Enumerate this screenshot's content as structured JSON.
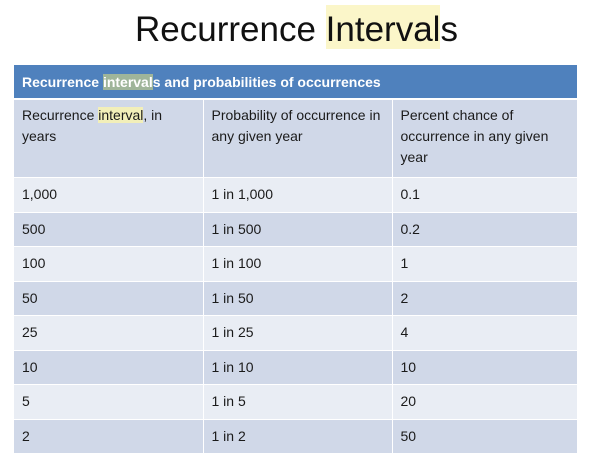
{
  "slide": {
    "title_pre": "Recurrence ",
    "title_hl": "Interval",
    "title_post": "s"
  },
  "table": {
    "caption_pre": "Recurrence ",
    "caption_hl": "interval",
    "caption_post": "s and probabilities of occurrences",
    "headers": {
      "col1_pre": "Recurrence ",
      "col1_hl": "interval",
      "col1_post": ", in years",
      "col2": "Probability of occurrence in any given year",
      "col3": "Percent chance of occurrence in any given year"
    },
    "rows": [
      {
        "interval": "1,000",
        "probability": "1 in 1,000",
        "percent": "0.1"
      },
      {
        "interval": "500",
        "probability": "1 in 500",
        "percent": "0.2"
      },
      {
        "interval": "100",
        "probability": "1 in 100",
        "percent": "1"
      },
      {
        "interval": "50",
        "probability": "1 in 50",
        "percent": "2"
      },
      {
        "interval": "25",
        "probability": "1 in 25",
        "percent": "4"
      },
      {
        "interval": "10",
        "probability": "1 in 10",
        "percent": "10"
      },
      {
        "interval": "5",
        "probability": "1 in 5",
        "percent": "20"
      },
      {
        "interval": "2",
        "probability": "1 in 2",
        "percent": "50"
      }
    ]
  },
  "colors": {
    "caption_bg": "#4f81bd",
    "row_dark": "#d0d8e8",
    "row_light": "#e9edf4",
    "highlight": "#fbf6c9"
  }
}
